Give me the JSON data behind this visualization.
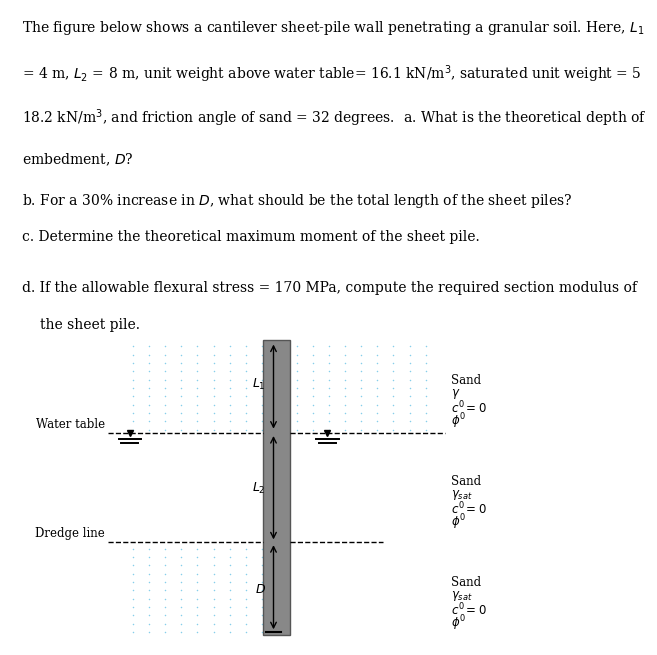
{
  "background_color": "#ffffff",
  "pile_color": "#888888",
  "pile_edge_color": "#555555",
  "dot_color": "#87CEEB",
  "text_fontsize": 10,
  "diagram_fontsize": 9,
  "water_table_label": "Water table",
  "dredge_label": "Dredge line",
  "L1_label": "$L_1$",
  "L2_label": "$L_2$",
  "D_label": "$D$",
  "sand_top_lines": [
    "Sand",
    "$\\gamma$",
    "$c' = 0$",
    "$\\phi'$"
  ],
  "sand_mid_lines": [
    "Sand",
    "$\\gamma_{sat}$",
    "$c' = 0$",
    "$\\phi'$"
  ],
  "sand_bot_lines": [
    "Sand",
    "$\\gamma_{sat}$",
    "$c' = 0$",
    "$\\phi'$"
  ],
  "para1": "The figure below shows a cantilever sheet-pile wall penetrating a granular soil. Here, $L_1$",
  "para2": "= 4 m, $L_2$ = 8 m, unit weight above water table= 16.1 kN/m$^3$, saturated unit weight = 5",
  "para3": "18.2 kN/m$^3$, and friction angle of sand = 32 degrees.  a. What is the theoretical depth of",
  "para4": "embedment, $D$?",
  "line_b": "b. For a 30% increase in $D$, what should be the total length of the sheet piles?",
  "line_c": "c. Determine the theoretical maximum moment of the sheet pile.",
  "line_d1": "d. If the allowable flexural stress = 170 MPa, compute the required section modulus of",
  "line_d2": "   the sheet pile."
}
